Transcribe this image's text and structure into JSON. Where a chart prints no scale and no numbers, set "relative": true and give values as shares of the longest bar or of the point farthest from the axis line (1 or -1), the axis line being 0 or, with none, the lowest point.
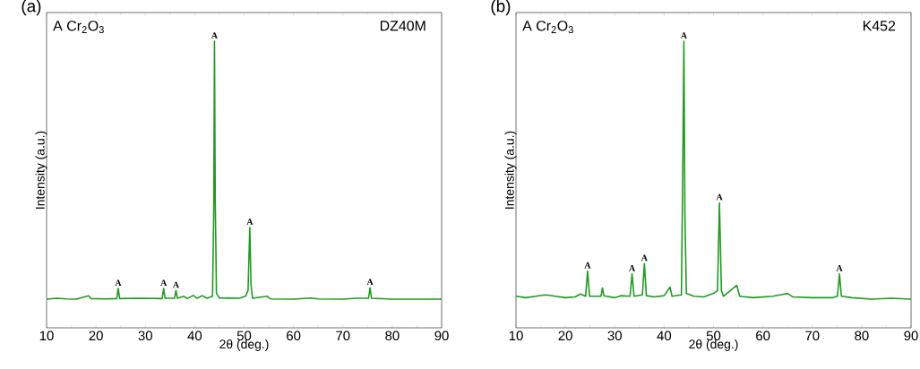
{
  "chart_data": [
    {
      "type": "line",
      "title": "(a)",
      "xlabel": "2θ (deg.)",
      "ylabel": "Intensity (a.u.)",
      "relative": true,
      "xlim": [
        10,
        90
      ],
      "xticks": [
        10,
        20,
        30,
        40,
        50,
        60,
        70,
        80,
        90
      ],
      "series": [
        {
          "color": "#1f9a1f",
          "x": [
            10,
            12,
            14,
            16,
            18.5,
            19,
            22,
            24.2,
            24.5,
            24.8,
            29,
            33.4,
            33.7,
            34,
            35.9,
            36.2,
            36.5,
            37.8,
            38.5,
            39.7,
            40.5,
            41.5,
            42.5,
            43.6,
            43.85,
            44.0,
            44.15,
            44.4,
            45,
            49,
            50.3,
            50.8,
            51.15,
            51.4,
            51.7,
            54.7,
            55.3,
            60,
            63.5,
            65,
            70,
            72.8,
            75.2,
            75.5,
            75.8,
            80,
            85,
            90
          ],
          "values": [
            0.1,
            0.103,
            0.101,
            0.1,
            0.112,
            0.102,
            0.101,
            0.102,
            0.137,
            0.102,
            0.103,
            0.102,
            0.137,
            0.103,
            0.103,
            0.13,
            0.103,
            0.11,
            0.102,
            0.113,
            0.103,
            0.112,
            0.103,
            0.11,
            0.4,
            1.0,
            0.45,
            0.12,
            0.104,
            0.103,
            0.11,
            0.13,
            0.35,
            0.15,
            0.103,
            0.11,
            0.101,
            0.1,
            0.104,
            0.101,
            0.1,
            0.103,
            0.103,
            0.14,
            0.103,
            0.1,
            0.1,
            0.1
          ]
        }
      ],
      "annotations": [
        "A Cr$_{2}$O$_{3}$",
        "DZ40M",
        {
          "text": "A",
          "x": 24.5,
          "y": 0.137
        },
        {
          "text": "A",
          "x": 33.7,
          "y": 0.137
        },
        {
          "text": "A",
          "x": 36.2,
          "y": 0.13
        },
        {
          "text": "A",
          "x": 44.0,
          "y": 1.0
        },
        {
          "text": "A",
          "x": 51.15,
          "y": 0.35
        },
        {
          "text": "A",
          "x": 75.5,
          "y": 0.14
        }
      ]
    },
    {
      "type": "line",
      "title": "(b)",
      "xlabel": "2θ (deg.)",
      "ylabel": "Intensity (a.u.)",
      "relative": true,
      "xlim": [
        10,
        90
      ],
      "xticks": [
        10,
        20,
        30,
        40,
        50,
        60,
        70,
        80,
        90
      ],
      "series": [
        {
          "color": "#1f9a1f",
          "x": [
            10,
            12,
            14,
            16,
            18,
            20,
            22,
            23,
            24.1,
            24.5,
            24.9,
            27.2,
            27.5,
            27.8,
            30,
            31.2,
            33.1,
            33.5,
            33.9,
            35.6,
            36.0,
            36.4,
            38,
            40,
            41.2,
            41.6,
            43.5,
            43.8,
            44.0,
            44.2,
            44.5,
            46,
            48,
            50,
            50.8,
            51.2,
            51.6,
            52,
            54.7,
            55.3,
            58,
            62,
            63.5,
            65,
            66,
            70,
            74,
            75.1,
            75.5,
            75.9,
            78,
            82,
            86,
            90
          ],
          "values": [
            0.11,
            0.105,
            0.11,
            0.115,
            0.11,
            0.105,
            0.108,
            0.118,
            0.11,
            0.198,
            0.11,
            0.11,
            0.139,
            0.112,
            0.105,
            0.112,
            0.11,
            0.188,
            0.11,
            0.115,
            0.224,
            0.112,
            0.108,
            0.112,
            0.142,
            0.11,
            0.115,
            0.6,
            1.0,
            0.4,
            0.12,
            0.11,
            0.108,
            0.12,
            0.13,
            0.436,
            0.13,
            0.11,
            0.148,
            0.11,
            0.105,
            0.11,
            0.115,
            0.12,
            0.108,
            0.105,
            0.105,
            0.11,
            0.188,
            0.11,
            0.105,
            0.1,
            0.103,
            0.1
          ]
        }
      ],
      "annotations": [
        "A Cr$_{2}$O$_{3}$",
        "K452",
        {
          "text": "A",
          "x": 24.5,
          "y": 0.198
        },
        {
          "text": "A",
          "x": 33.5,
          "y": 0.188
        },
        {
          "text": "A",
          "x": 36.0,
          "y": 0.224
        },
        {
          "text": "A",
          "x": 44.0,
          "y": 1.0
        },
        {
          "text": "A",
          "x": 51.2,
          "y": 0.436
        },
        {
          "text": "A",
          "x": 75.5,
          "y": 0.188
        }
      ]
    }
  ]
}
